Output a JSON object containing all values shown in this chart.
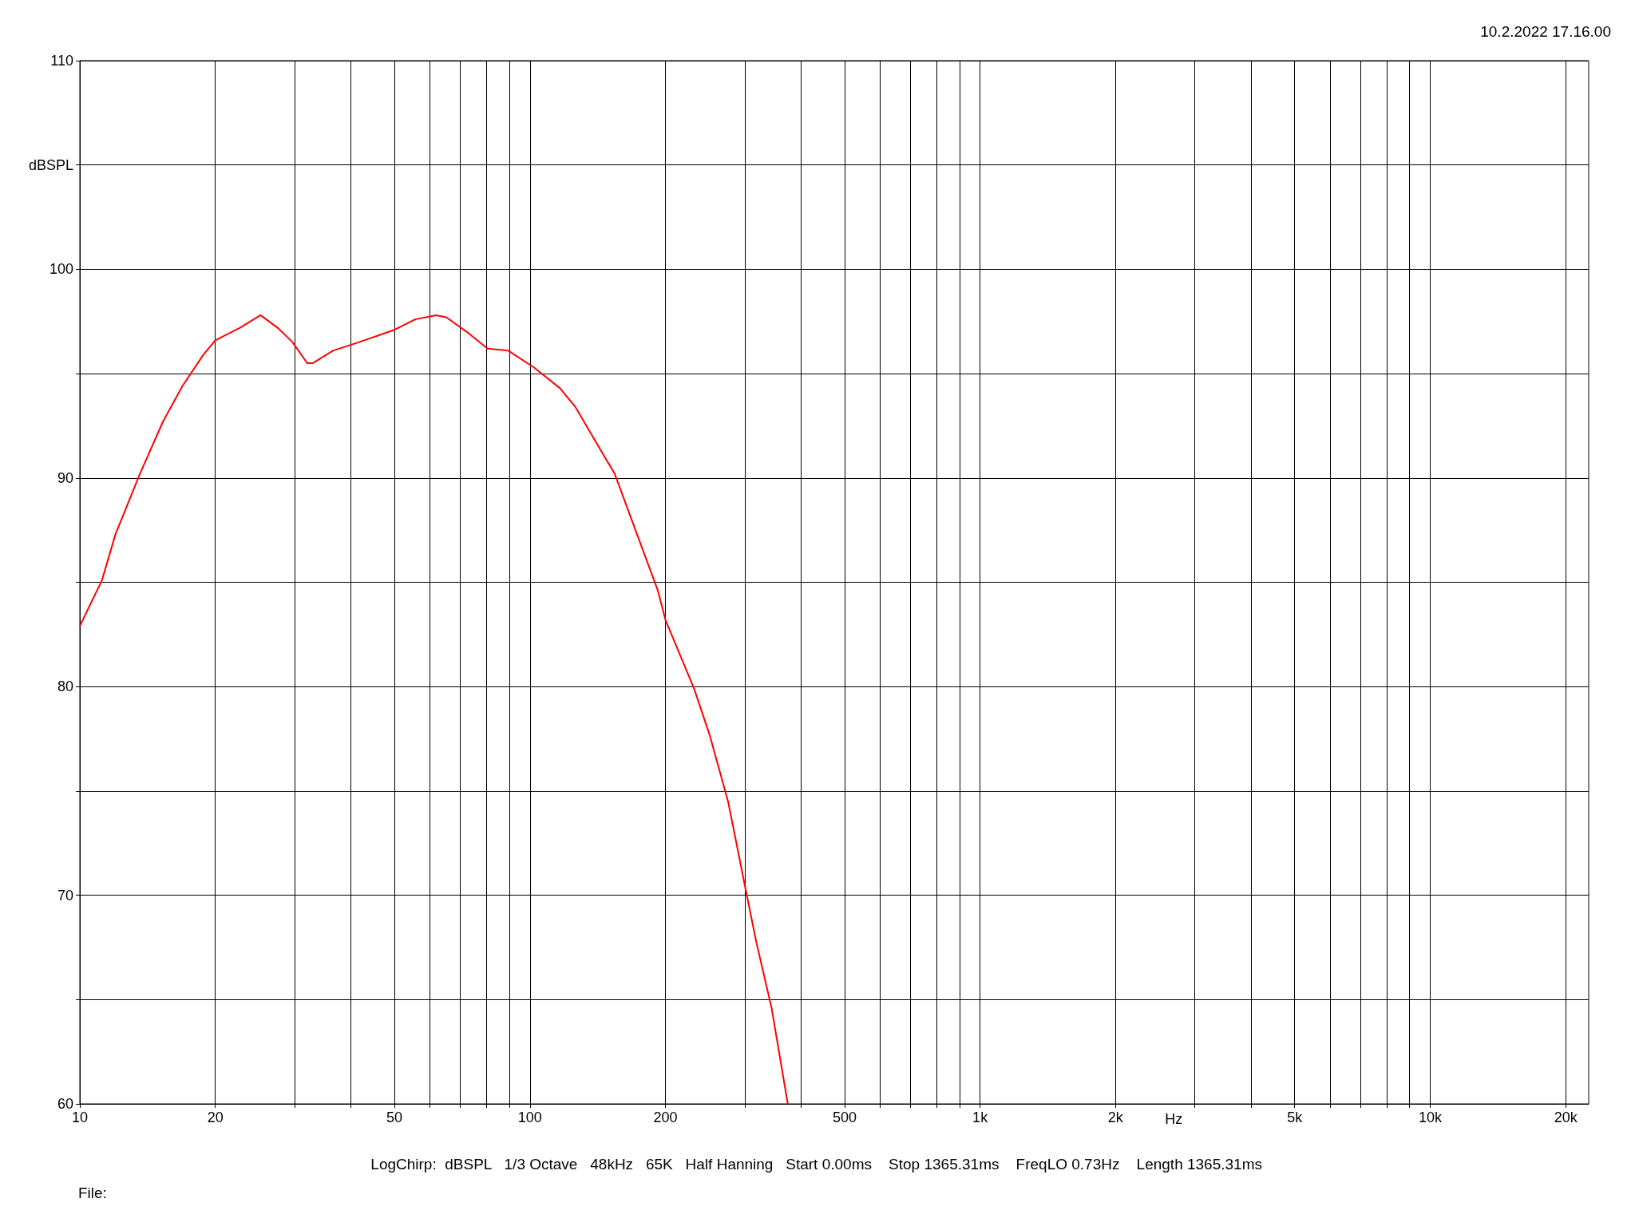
{
  "chart_data": {
    "type": "line",
    "xlabel": "Hz",
    "log": "x",
    "grid": true,
    "marker": "none",
    "line_style": "solid",
    "annotations": [
      "10.2.2022 17.16.00",
      "LogChirp:  dBSPL   1/3 Octave   48kHz   65K   Half Hanning   Start 0.00ms    Stop 1365.31ms    FreqLO 0.73Hz    Length 1365.31ms",
      "File:"
    ],
    "xlim": [
      10,
      22500
    ],
    "ylim": [
      60,
      110
    ],
    "xticks": [
      10,
      20,
      {
        "value": 30,
        "label": null
      },
      {
        "value": 40,
        "label": null
      },
      50,
      {
        "value": 60,
        "label": null
      },
      {
        "value": 70,
        "label": null
      },
      {
        "value": 80,
        "label": null
      },
      {
        "value": 90,
        "label": null
      },
      100,
      200,
      {
        "value": 300,
        "label": null
      },
      {
        "value": 400,
        "label": null
      },
      500,
      {
        "value": 600,
        "label": null
      },
      {
        "value": 700,
        "label": null
      },
      {
        "value": 800,
        "label": null
      },
      {
        "value": 900,
        "label": null
      },
      {
        "value": 1000,
        "label": "1k"
      },
      {
        "value": 2000,
        "label": "2k"
      },
      {
        "value": 3000,
        "label": null
      },
      {
        "value": 4000,
        "label": null
      },
      {
        "value": 5000,
        "label": "5k"
      },
      {
        "value": 6000,
        "label": null
      },
      {
        "value": 7000,
        "label": null
      },
      {
        "value": 8000,
        "label": null
      },
      {
        "value": 9000,
        "label": null
      },
      {
        "value": 10000,
        "label": "10k"
      },
      {
        "value": 20000,
        "label": "20k"
      }
    ],
    "yticks": [
      60,
      {
        "value": 65,
        "label": null
      },
      70,
      {
        "value": 75,
        "label": null
      },
      80,
      {
        "value": 85,
        "label": null
      },
      90,
      {
        "value": 95,
        "label": null
      },
      100,
      {
        "value": 105,
        "label": "dBSPL"
      },
      110
    ],
    "series": [
      {
        "color": "#ff0000",
        "x": [
          10,
          11.2,
          12,
          13.6,
          15.3,
          16.9,
          18.8,
          20,
          22.7,
          25.2,
          27.5,
          29.7,
          32,
          32.9,
          36.5,
          41.6,
          50,
          55.6,
          61.8,
          65.2,
          72.4,
          80.5,
          89.5,
          102,
          116.6,
          126.2,
          140.3,
          154.3,
          175,
          192.4,
          200,
          231.6,
          250.6,
          275.5,
          300,
          318,
          344.2,
          374
        ],
        "values": [
          82.9,
          85.1,
          87.3,
          90.2,
          92.7,
          94.4,
          95.9,
          96.6,
          97.2,
          97.8,
          97.2,
          96.5,
          95.5,
          95.5,
          96.1,
          96.5,
          97.1,
          97.6,
          97.8,
          97.7,
          97,
          96.2,
          96.1,
          95.3,
          94.3,
          93.4,
          91.7,
          90.2,
          87,
          84.6,
          83.2,
          79.9,
          77.7,
          74.5,
          70.5,
          67.8,
          64.6,
          60
        ]
      }
    ]
  }
}
